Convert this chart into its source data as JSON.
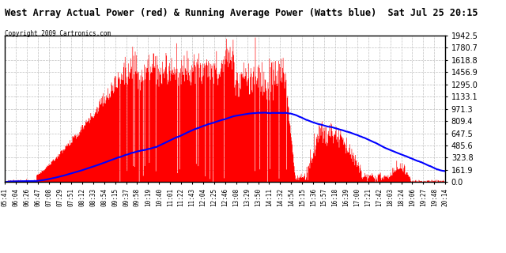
{
  "title": "West Array Actual Power (red) & Running Average Power (Watts blue)  Sat Jul 25 20:15",
  "copyright": "Copyright 2009 Cartronics.com",
  "background_color": "#ffffff",
  "plot_bg_color": "#ffffff",
  "grid_color": "#c0c0c0",
  "red_color": "#ff0000",
  "blue_color": "#0000ff",
  "yticks": [
    0.0,
    161.9,
    323.8,
    485.6,
    647.5,
    809.4,
    971.3,
    1133.1,
    1295.0,
    1456.9,
    1618.8,
    1780.7,
    1942.5
  ],
  "ymax": 1942.5,
  "xtick_labels": [
    "05:41",
    "06:04",
    "06:26",
    "06:47",
    "07:08",
    "07:29",
    "07:51",
    "08:12",
    "08:33",
    "08:54",
    "09:15",
    "09:37",
    "09:58",
    "10:19",
    "10:40",
    "11:01",
    "11:22",
    "11:43",
    "12:04",
    "12:25",
    "12:46",
    "13:08",
    "13:29",
    "13:50",
    "14:11",
    "14:32",
    "14:54",
    "15:15",
    "15:36",
    "15:57",
    "16:18",
    "16:39",
    "17:00",
    "17:21",
    "17:42",
    "18:03",
    "18:24",
    "19:06",
    "19:27",
    "19:48",
    "20:14"
  ]
}
